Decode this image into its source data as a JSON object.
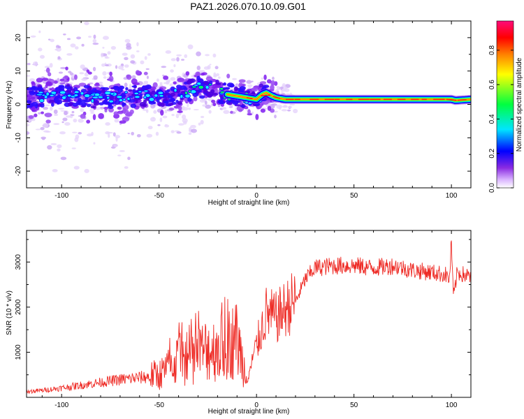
{
  "title": "PAZ1.2026.070.10.09.G01",
  "colors": {
    "snr_line": "#ee2a24",
    "frame": "#000000",
    "colormap": [
      "#ffffff",
      "#8a2be2",
      "#0000ff",
      "#00e5ff",
      "#00ff00",
      "#ffff00",
      "#ff8000",
      "#ff0000",
      "#ff0a7a"
    ]
  },
  "chart_data": [
    {
      "type": "heatmap",
      "name": "spectrogram",
      "xlabel": "Height of straight line (km)",
      "ylabel": "Frequency (Hz)",
      "xlim": [
        -118,
        110
      ],
      "ylim": [
        -25,
        25
      ],
      "xticks": [
        -100,
        -50,
        0,
        50,
        100
      ],
      "xtick_labels": [
        "-100",
        "-50",
        "0",
        "50",
        "100"
      ],
      "yticks": [
        -20,
        -10,
        0,
        10,
        20
      ],
      "ytick_labels": [
        "-20",
        "-10",
        "0",
        "10",
        "20"
      ],
      "dominant_frequency": {
        "x": [
          -118,
          -100,
          -80,
          -60,
          -40,
          -30,
          -25,
          -20,
          -15,
          -10,
          -5,
          0,
          3,
          5,
          8,
          10,
          15,
          20,
          50,
          80,
          100,
          102,
          110
        ],
        "y": [
          2,
          3,
          2,
          2.5,
          3,
          5,
          5.5,
          4,
          3,
          2.5,
          2,
          1.5,
          3,
          3.5,
          2.5,
          2,
          1.5,
          1.5,
          1.5,
          1.5,
          1.5,
          1.2,
          1.5
        ]
      },
      "colorbar": {
        "label": "Normalized spectral amplitude",
        "range": [
          0.0,
          0.97
        ],
        "ticks": [
          0.0,
          0.2,
          0.4,
          0.6,
          0.8
        ],
        "tick_labels": [
          "0.0",
          "0.2",
          "0.4",
          "0.6",
          "0.8"
        ]
      }
    },
    {
      "type": "line",
      "name": "snr",
      "xlabel": "Height of straight line (km)",
      "ylabel": "SNR (10 * v/v)",
      "xlim": [
        -118,
        110
      ],
      "ylim": [
        0,
        3700
      ],
      "xticks": [
        -100,
        -50,
        0,
        50,
        100
      ],
      "xtick_labels": [
        "-100",
        "-50",
        "0",
        "50",
        "100"
      ],
      "yticks": [
        1000,
        2000,
        3000
      ],
      "ytick_labels": [
        "1000",
        "2000",
        "3000"
      ],
      "series": [
        {
          "name": "SNR",
          "x": [
            -118,
            -110,
            -100,
            -90,
            -80,
            -70,
            -60,
            -50,
            -45,
            -40,
            -35,
            -30,
            -25,
            -20,
            -15,
            -10,
            -5,
            0,
            5,
            10,
            15,
            20,
            25,
            30,
            40,
            50,
            60,
            70,
            80,
            90,
            97,
            99,
            100,
            101,
            103,
            110
          ],
          "y": [
            120,
            150,
            200,
            260,
            320,
            380,
            420,
            470,
            600,
            800,
            750,
            900,
            1000,
            1000,
            1100,
            1200,
            400,
            1100,
            1800,
            1700,
            1900,
            2100,
            2600,
            2850,
            2900,
            2900,
            2850,
            2900,
            2800,
            2750,
            2700,
            2600,
            3400,
            2200,
            2750,
            2650
          ]
        }
      ]
    }
  ]
}
